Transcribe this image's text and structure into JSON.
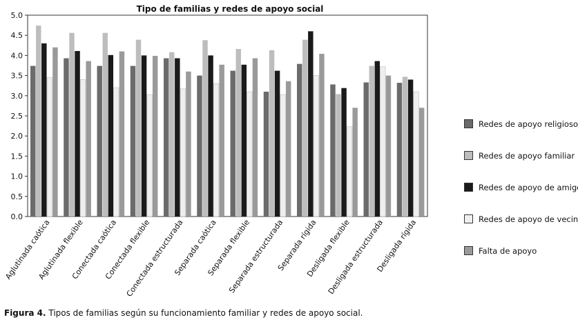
{
  "chart_data": {
    "type": "bar",
    "title": "Tipo de familias y redes de apoyo social",
    "xlabel": "",
    "ylabel": "",
    "ylim": [
      0,
      5
    ],
    "yticks": [
      "0.0",
      "0.5",
      "1.0",
      "1.5",
      "2.0",
      "2.5",
      "3.0",
      "3.5",
      "4.0",
      "4.5",
      "5.0"
    ],
    "grid": false,
    "legend_position": "right",
    "categories": [
      "Aglutinada caótica",
      "Aglutinada flexible",
      "Conectada caótica",
      "Conectada flexible",
      "Conectada estructurada",
      "Separada caótica",
      "Separada flexible",
      "Separada estructurada",
      "Separada rígida",
      "Desligada flexible",
      "Desligada estructurada",
      "Desligada rígida"
    ],
    "series": [
      {
        "name": "Redes de apoyo religioso",
        "color": "#6b6b6b",
        "values": [
          3.74,
          3.93,
          3.74,
          3.74,
          3.93,
          3.5,
          3.62,
          3.1,
          3.79,
          3.28,
          3.33,
          3.32
        ]
      },
      {
        "name": "Redes de apoyo familiar",
        "color": "#bdbdbd",
        "values": [
          4.74,
          4.56,
          4.56,
          4.39,
          4.08,
          4.38,
          4.16,
          4.13,
          4.39,
          3.04,
          3.74,
          3.47
        ]
      },
      {
        "name": "Redes de apoyo de amigos",
        "color": "#1a1a1a",
        "values": [
          4.3,
          4.11,
          4.01,
          4.0,
          3.93,
          4.0,
          3.77,
          3.62,
          4.6,
          3.19,
          3.86,
          3.4
        ]
      },
      {
        "name": "Redes de apoyo de vecinos",
        "color": "#efefef",
        "values": [
          3.45,
          3.4,
          3.2,
          3.03,
          3.17,
          3.3,
          3.1,
          3.03,
          3.5,
          2.23,
          3.72,
          3.1
        ]
      },
      {
        "name": "Falta de apoyo",
        "color": "#9a9a9a",
        "values": [
          4.2,
          3.86,
          4.1,
          3.99,
          3.6,
          3.77,
          3.93,
          3.36,
          4.04,
          2.7,
          3.5,
          2.7
        ]
      }
    ]
  },
  "caption": {
    "label": "Figura 4.",
    "text": " Tipos de familias según su funcionamiento familiar y redes de apoyo social."
  }
}
